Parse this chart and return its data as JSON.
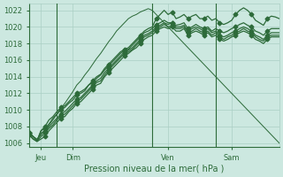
{
  "title": "",
  "xlabel": "Pression niveau de la mer( hPa )",
  "ylabel": "",
  "background_color": "#cce8e0",
  "plot_bg_color": "#cce8e0",
  "grid_color": "#aacfc4",
  "line_color": "#2d6b3a",
  "ylim": [
    1005.5,
    1022.8
  ],
  "xlim_max": 63,
  "day_ticks": [
    3,
    11,
    35,
    51
  ],
  "day_labels": [
    "Jeu",
    "Dim",
    "Ven",
    "Sam"
  ],
  "vline_positions": [
    7,
    31,
    47
  ],
  "series": [
    [
      1007.2,
      1006.8,
      1006.3,
      1007.5,
      1008.0,
      1008.8,
      1009.2,
      1009.8,
      1010.3,
      1010.5,
      1011.0,
      1011.5,
      1012.0,
      1012.2,
      1012.5,
      1013.0,
      1013.5,
      1014.0,
      1014.3,
      1015.0,
      1015.5,
      1016.0,
      1016.5,
      1017.0,
      1017.3,
      1017.5,
      1018.0,
      1018.5,
      1019.0,
      1019.5,
      1019.8,
      1020.0,
      1021.0,
      1021.5,
      1022.0,
      1021.5,
      1021.8,
      1021.0,
      1021.2,
      1021.5,
      1021.0,
      1021.3,
      1021.5,
      1021.0,
      1021.0,
      1021.3,
      1020.8,
      1021.0,
      1020.5,
      1020.3,
      1020.5,
      1020.8,
      1021.5,
      1022.0,
      1022.3,
      1022.0,
      1021.5,
      1020.8,
      1020.5,
      1020.2,
      1021.0,
      1021.3,
      1021.2,
      1021.0
    ],
    [
      1007.2,
      1006.8,
      1006.3,
      1007.5,
      1007.8,
      1008.3,
      1009.0,
      1009.5,
      1010.0,
      1010.3,
      1010.8,
      1011.2,
      1011.8,
      1012.0,
      1012.3,
      1013.0,
      1013.3,
      1013.8,
      1014.2,
      1014.8,
      1015.3,
      1015.8,
      1016.3,
      1016.8,
      1017.2,
      1017.3,
      1017.8,
      1018.3,
      1018.8,
      1019.3,
      1019.5,
      1019.8,
      1020.3,
      1020.5,
      1020.8,
      1020.5,
      1020.5,
      1020.2,
      1020.3,
      1020.5,
      1019.8,
      1020.0,
      1020.3,
      1020.0,
      1019.8,
      1020.0,
      1019.5,
      1019.8,
      1019.5,
      1019.3,
      1019.5,
      1019.8,
      1020.0,
      1020.3,
      1020.5,
      1020.2,
      1020.0,
      1019.5,
      1019.3,
      1019.0,
      1019.5,
      1019.8,
      1019.8,
      1019.8
    ],
    [
      1007.2,
      1006.8,
      1006.3,
      1007.2,
      1007.5,
      1008.0,
      1008.5,
      1009.0,
      1009.5,
      1009.8,
      1010.3,
      1010.8,
      1011.3,
      1011.5,
      1012.0,
      1012.5,
      1013.0,
      1013.5,
      1013.8,
      1014.5,
      1015.0,
      1015.5,
      1016.0,
      1016.5,
      1017.0,
      1017.2,
      1017.5,
      1018.0,
      1018.5,
      1019.0,
      1019.2,
      1019.5,
      1020.0,
      1020.2,
      1020.5,
      1020.3,
      1020.5,
      1020.0,
      1020.0,
      1020.2,
      1019.5,
      1019.8,
      1020.0,
      1019.8,
      1019.5,
      1019.8,
      1019.3,
      1019.5,
      1019.0,
      1018.8,
      1019.0,
      1019.3,
      1019.5,
      1019.8,
      1020.0,
      1019.8,
      1019.5,
      1019.0,
      1018.8,
      1018.5,
      1019.0,
      1019.3,
      1019.3,
      1019.3
    ],
    [
      1007.0,
      1006.5,
      1006.2,
      1006.8,
      1007.2,
      1007.8,
      1008.2,
      1008.8,
      1009.3,
      1009.5,
      1010.0,
      1010.5,
      1011.0,
      1011.3,
      1011.8,
      1012.3,
      1012.8,
      1013.3,
      1013.5,
      1014.2,
      1014.8,
      1015.3,
      1015.8,
      1016.3,
      1016.8,
      1017.0,
      1017.3,
      1017.8,
      1018.3,
      1018.8,
      1019.0,
      1019.3,
      1019.8,
      1020.0,
      1020.3,
      1020.0,
      1020.2,
      1019.8,
      1019.8,
      1020.0,
      1019.3,
      1019.5,
      1019.8,
      1019.5,
      1019.3,
      1019.5,
      1019.0,
      1019.3,
      1018.8,
      1018.5,
      1018.8,
      1019.0,
      1019.3,
      1019.5,
      1019.8,
      1019.5,
      1019.3,
      1018.8,
      1018.5,
      1018.3,
      1018.8,
      1019.0,
      1019.0,
      1019.0
    ],
    [
      1007.0,
      1006.5,
      1006.2,
      1006.5,
      1006.8,
      1007.5,
      1008.0,
      1008.5,
      1009.0,
      1009.2,
      1009.8,
      1010.2,
      1010.8,
      1011.0,
      1011.5,
      1012.0,
      1012.5,
      1013.0,
      1013.2,
      1014.0,
      1014.5,
      1015.0,
      1015.5,
      1016.0,
      1016.5,
      1016.8,
      1017.2,
      1017.5,
      1018.0,
      1018.5,
      1018.8,
      1019.0,
      1019.5,
      1019.8,
      1020.0,
      1019.8,
      1020.0,
      1019.5,
      1019.5,
      1019.8,
      1019.0,
      1019.3,
      1019.5,
      1019.3,
      1019.0,
      1019.3,
      1018.8,
      1019.0,
      1018.5,
      1018.3,
      1018.5,
      1018.8,
      1019.0,
      1019.3,
      1019.5,
      1019.3,
      1019.0,
      1018.5,
      1018.3,
      1018.0,
      1018.5,
      1018.8,
      1018.8,
      1018.8
    ],
    [
      1007.0,
      1006.8,
      1006.5,
      1007.0,
      1007.5,
      1008.2,
      1008.8,
      1009.5,
      1010.2,
      1010.8,
      1011.5,
      1012.2,
      1013.0,
      1013.5,
      1014.2,
      1014.8,
      1015.5,
      1016.2,
      1016.8,
      1017.5,
      1018.2,
      1018.8,
      1019.5,
      1020.0,
      1020.5,
      1021.0,
      1021.3,
      1021.5,
      1021.8,
      1022.0,
      1022.2,
      1022.0,
      1021.5,
      1021.0,
      1020.5,
      1020.0,
      1019.5,
      1019.0,
      1018.5,
      1018.0,
      1017.5,
      1017.0,
      1016.5,
      1016.0,
      1015.5,
      1015.0,
      1014.5,
      1014.0,
      1013.5,
      1013.0,
      1012.5,
      1012.0,
      1011.5,
      1011.0,
      1010.5,
      1010.0,
      1009.5,
      1009.0,
      1008.5,
      1008.0,
      1007.5,
      1007.0,
      1006.5,
      1006.0
    ]
  ],
  "n_points": 64,
  "ytick_step": 2,
  "marker_interval": 4,
  "line_width": 0.9,
  "marker_size": 2.5,
  "font_size_ticks": 6,
  "font_size_xlabel": 7
}
